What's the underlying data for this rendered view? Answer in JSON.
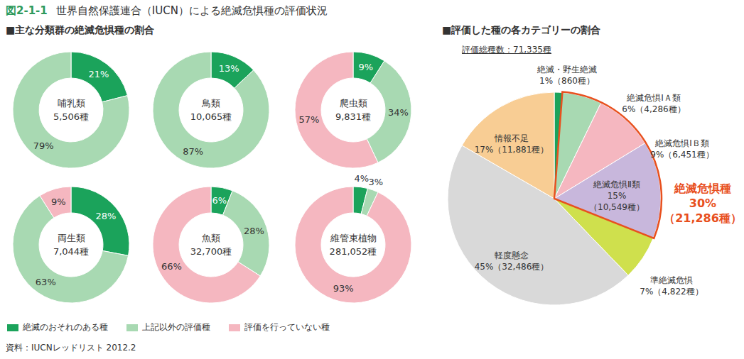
{
  "figure_label": "図2-1-1",
  "figure_title": "世界自然保護連合（IUCN）による絶滅危惧種の評価状況",
  "left_panel_title": "■主な分類群の絶滅危惧種の割合",
  "source": "資料：IUCNレッドリスト 2012.2",
  "shared_legend": [
    {
      "name": "絶滅のおそれのある種",
      "color": "#1ba35b"
    },
    {
      "name": "上記以外の評価種",
      "color": "#a8d9b2"
    },
    {
      "name": "評価を行っていない種",
      "color": "#f5b7c0"
    }
  ],
  "chart_data": [
    {
      "type": "donut",
      "title": "哺乳類",
      "subtitle": "5,506種",
      "categories": [
        "絶滅のおそれのある種",
        "上記以外の評価種"
      ],
      "values": [
        21,
        79
      ],
      "value_labels": [
        "21%",
        "79%"
      ],
      "colors": [
        "#1ba35b",
        "#a8d9b2"
      ],
      "data_labels": true
    },
    {
      "type": "donut",
      "title": "鳥類",
      "subtitle": "10,065種",
      "categories": [
        "絶滅のおそれのある種",
        "上記以外の評価種"
      ],
      "values": [
        13,
        87
      ],
      "value_labels": [
        "13%",
        "87%"
      ],
      "colors": [
        "#1ba35b",
        "#a8d9b2"
      ],
      "data_labels": true
    },
    {
      "type": "donut",
      "title": "爬虫類",
      "subtitle": "9,831種",
      "categories": [
        "絶滅のおそれのある種",
        "上記以外の評価種",
        "評価を行っていない種"
      ],
      "values": [
        9,
        34,
        57
      ],
      "value_labels": [
        "9%",
        "34%",
        "57%"
      ],
      "colors": [
        "#1ba35b",
        "#a8d9b2",
        "#f5b7c0"
      ],
      "data_labels": true
    },
    {
      "type": "donut",
      "title": "両生類",
      "subtitle": "7,044種",
      "categories": [
        "絶滅のおそれのある種",
        "上記以外の評価種",
        "評価を行っていない種"
      ],
      "values": [
        28,
        63,
        9
      ],
      "value_labels": [
        "28%",
        "63%",
        "9%"
      ],
      "colors": [
        "#1ba35b",
        "#a8d9b2",
        "#f5b7c0"
      ],
      "data_labels": true
    },
    {
      "type": "donut",
      "title": "魚類",
      "subtitle": "32,700種",
      "categories": [
        "絶滅のおそれのある種",
        "上記以外の評価種",
        "評価を行っていない種"
      ],
      "values": [
        6,
        28,
        66
      ],
      "value_labels": [
        "6%",
        "28%",
        "66%"
      ],
      "colors": [
        "#1ba35b",
        "#a8d9b2",
        "#f5b7c0"
      ],
      "data_labels": true
    },
    {
      "type": "donut",
      "title": "維管束植物",
      "subtitle": "281,052種",
      "categories": [
        "絶滅のおそれのある種",
        "上記以外の評価種",
        "評価を行っていない種"
      ],
      "values": [
        4,
        3,
        93
      ],
      "value_labels": [
        "4%",
        "3%",
        "93%"
      ],
      "colors": [
        "#1ba35b",
        "#a8d9b2",
        "#f5b7c0"
      ],
      "data_labels": true
    },
    {
      "type": "pie",
      "title": "■評価した種の各カテゴリーの割合",
      "subtitle": "評価総種数：71,335種",
      "categories": [
        "絶滅・野生絶滅",
        "絶滅危惧ⅠＡ類",
        "絶滅危惧ⅠＢ類",
        "絶滅危惧Ⅱ類",
        "準絶滅危惧",
        "軽度懸念",
        "情報不足"
      ],
      "values": [
        860,
        4286,
        6451,
        10549,
        4822,
        32486,
        11881
      ],
      "value_labels": [
        "1%（860種）",
        "6%（4,286種）",
        "9%（6,451種）",
        "15%（10,549種）",
        "7%（4,822種）",
        "45%（32,486種）",
        "17%（11,881種）"
      ],
      "colors": [
        "#1ba35b",
        "#a8d9b2",
        "#f5b7c0",
        "#c8b7dc",
        "#cfe04d",
        "#d9d9d9",
        "#f8cd94"
      ],
      "data_labels": true,
      "annotation": {
        "lines": [
          "絶滅危惧種",
          "30%",
          "（21,286種）"
        ],
        "color": "#e8501e",
        "categories": [
          "絶滅危惧ⅠＡ類",
          "絶滅危惧ⅠＢ類",
          "絶滅危惧Ⅱ類"
        ]
      }
    }
  ]
}
